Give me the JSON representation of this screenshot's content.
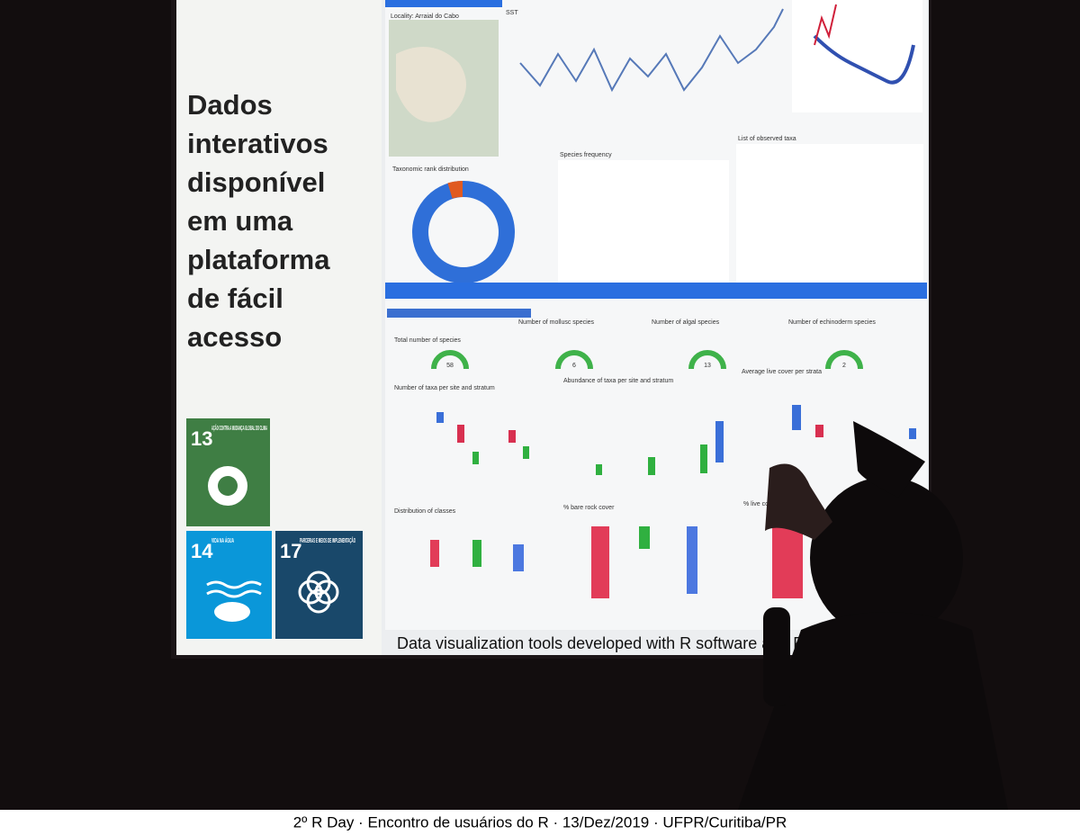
{
  "slide": {
    "heading_lines": [
      "Dados",
      "interativos",
      "disponível",
      "em uma",
      "plataforma",
      "de fácil",
      "acesso"
    ],
    "sdg": [
      {
        "number": "13",
        "label": "AÇÃO CONTRA A MUDANÇA GLOBAL DO CLIMA"
      },
      {
        "number": "14",
        "label": "VIDA NA ÁGUA"
      },
      {
        "number": "17",
        "label": "PARCERIAS E MEIOS DE IMPLEMENTAÇÃO"
      }
    ],
    "dashboard": {
      "top_panels": [
        "Locality: Arraial do Cabo",
        "SST",
        "Taxonomic rank distribution",
        "Species frequency",
        "List of observed taxa"
      ],
      "gauges": [
        {
          "label": "Total number of species",
          "value": "58"
        },
        {
          "label": "Number of mollusc species",
          "value": "6"
        },
        {
          "label": "Number of algal species",
          "value": "13"
        },
        {
          "label": "Number of echinoderm species",
          "value": "2"
        }
      ],
      "plots": [
        "Number of taxa per site and stratum",
        "Abundance of taxa per site and stratum",
        "Average live cover per strata",
        "Distribution of classes",
        "% bare rock cover",
        "% live cover"
      ]
    },
    "caption": "Data visualization tools developed with R software and R S"
  },
  "footer": "2º R Day · Encontro de usuários do R · 13/Dez/2019 · UFPR/Curitiba/PR"
}
